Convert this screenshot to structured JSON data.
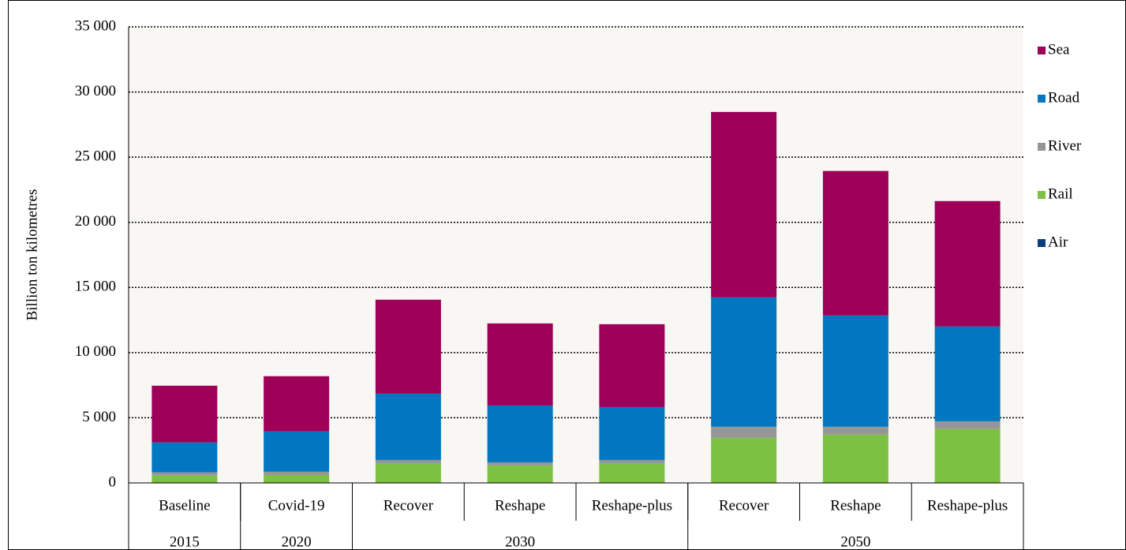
{
  "chart_data": {
    "type": "stacked_bar",
    "y_label": "Billion ton kilometres",
    "categories": [
      "Baseline",
      "Covid-19",
      "Recover",
      "Reshape",
      "Reshape-plus",
      "Recover",
      "Reshape",
      "Reshape-plus"
    ],
    "groups": [
      {
        "label": "2015",
        "size": 1
      },
      {
        "label": "2020",
        "size": 1
      },
      {
        "label": "2030",
        "size": 3
      },
      {
        "label": "2050",
        "size": 3
      }
    ],
    "series": [
      {
        "name": "Air",
        "color": "#0b3d7a",
        "values": [
          10,
          10,
          10,
          10,
          10,
          10,
          10,
          10
        ]
      },
      {
        "name": "Rail",
        "color": "#7dc142",
        "values": [
          550,
          600,
          1450,
          1330,
          1450,
          3450,
          3690,
          4120
        ]
      },
      {
        "name": "River",
        "color": "#969696",
        "values": [
          250,
          250,
          300,
          240,
          300,
          850,
          610,
          600
        ]
      },
      {
        "name": "Road",
        "color": "#0077c0",
        "values": [
          2300,
          3090,
          5090,
          4360,
          4060,
          9930,
          8540,
          7270
        ]
      },
      {
        "name": "Sea",
        "color": "#9e0059",
        "values": [
          4350,
          4240,
          7210,
          6300,
          6360,
          14230,
          11090,
          9630
        ]
      }
    ],
    "ylim": [
      0,
      35000
    ],
    "yticks": [
      {
        "value": 0,
        "label": "0"
      },
      {
        "value": 5000,
        "label": "5 000"
      },
      {
        "value": 10000,
        "label": "10 000"
      },
      {
        "value": 15000,
        "label": "15 000"
      },
      {
        "value": 20000,
        "label": "20 000"
      },
      {
        "value": 25000,
        "label": "25 000"
      },
      {
        "value": 30000,
        "label": "30 000"
      },
      {
        "value": 35000,
        "label": "35 000"
      }
    ],
    "grid": true,
    "legend": "right"
  }
}
